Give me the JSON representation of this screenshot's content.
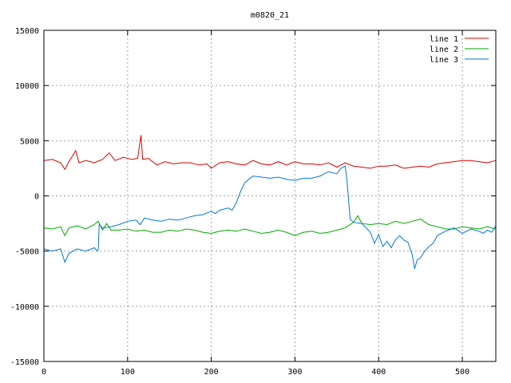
{
  "chart_data": {
    "type": "line",
    "title": "m0820_21",
    "xlim": [
      0,
      540
    ],
    "ylim": [
      -15000,
      15000
    ],
    "x_ticks": [
      0,
      100,
      200,
      300,
      400,
      500
    ],
    "y_ticks": [
      -15000,
      -10000,
      -5000,
      0,
      5000,
      10000,
      15000
    ],
    "grid": true,
    "legend_position": "top-right",
    "series": [
      {
        "name": "line 1",
        "color": "#dd0000",
        "points": [
          [
            0,
            3200
          ],
          [
            10,
            3300
          ],
          [
            20,
            3000
          ],
          [
            25,
            2400
          ],
          [
            30,
            3100
          ],
          [
            38,
            4100
          ],
          [
            42,
            3000
          ],
          [
            50,
            3200
          ],
          [
            60,
            3000
          ],
          [
            70,
            3300
          ],
          [
            78,
            3900
          ],
          [
            85,
            3200
          ],
          [
            95,
            3500
          ],
          [
            105,
            3300
          ],
          [
            112,
            3400
          ],
          [
            116,
            5500
          ],
          [
            118,
            3300
          ],
          [
            125,
            3400
          ],
          [
            135,
            2800
          ],
          [
            145,
            3100
          ],
          [
            155,
            2900
          ],
          [
            165,
            3000
          ],
          [
            175,
            3000
          ],
          [
            185,
            2800
          ],
          [
            195,
            2900
          ],
          [
            200,
            2500
          ],
          [
            210,
            3000
          ],
          [
            220,
            3100
          ],
          [
            230,
            2900
          ],
          [
            240,
            2800
          ],
          [
            250,
            3200
          ],
          [
            260,
            2900
          ],
          [
            270,
            2800
          ],
          [
            280,
            3100
          ],
          [
            290,
            2800
          ],
          [
            300,
            3100
          ],
          [
            310,
            2900
          ],
          [
            320,
            2900
          ],
          [
            330,
            2800
          ],
          [
            340,
            3000
          ],
          [
            350,
            2600
          ],
          [
            360,
            3000
          ],
          [
            370,
            2700
          ],
          [
            380,
            2600
          ],
          [
            390,
            2500
          ],
          [
            400,
            2700
          ],
          [
            410,
            2700
          ],
          [
            420,
            2800
          ],
          [
            430,
            2500
          ],
          [
            440,
            2600
          ],
          [
            450,
            2700
          ],
          [
            460,
            2600
          ],
          [
            470,
            2900
          ],
          [
            480,
            3000
          ],
          [
            490,
            3100
          ],
          [
            500,
            3200
          ],
          [
            510,
            3200
          ],
          [
            520,
            3100
          ],
          [
            530,
            3000
          ],
          [
            540,
            3200
          ]
        ]
      },
      {
        "name": "line 2",
        "color": "#00aa00",
        "points": [
          [
            0,
            -2900
          ],
          [
            10,
            -3000
          ],
          [
            20,
            -2800
          ],
          [
            25,
            -3600
          ],
          [
            30,
            -2900
          ],
          [
            40,
            -2700
          ],
          [
            50,
            -3000
          ],
          [
            60,
            -2600
          ],
          [
            65,
            -2300
          ],
          [
            70,
            -3100
          ],
          [
            75,
            -2500
          ],
          [
            80,
            -3100
          ],
          [
            90,
            -3100
          ],
          [
            100,
            -3000
          ],
          [
            110,
            -3200
          ],
          [
            120,
            -3100
          ],
          [
            130,
            -3300
          ],
          [
            140,
            -3300
          ],
          [
            150,
            -3100
          ],
          [
            160,
            -3200
          ],
          [
            170,
            -3000
          ],
          [
            180,
            -3100
          ],
          [
            190,
            -3300
          ],
          [
            200,
            -3400
          ],
          [
            210,
            -3200
          ],
          [
            220,
            -3100
          ],
          [
            230,
            -3200
          ],
          [
            240,
            -3000
          ],
          [
            250,
            -3200
          ],
          [
            260,
            -3400
          ],
          [
            270,
            -3300
          ],
          [
            280,
            -3100
          ],
          [
            290,
            -3300
          ],
          [
            300,
            -3600
          ],
          [
            310,
            -3300
          ],
          [
            320,
            -3200
          ],
          [
            330,
            -3400
          ],
          [
            340,
            -3300
          ],
          [
            350,
            -3100
          ],
          [
            360,
            -2900
          ],
          [
            370,
            -2400
          ],
          [
            375,
            -1800
          ],
          [
            380,
            -2500
          ],
          [
            390,
            -2600
          ],
          [
            400,
            -2500
          ],
          [
            410,
            -2600
          ],
          [
            420,
            -2300
          ],
          [
            430,
            -2500
          ],
          [
            440,
            -2300
          ],
          [
            450,
            -2100
          ],
          [
            460,
            -2600
          ],
          [
            470,
            -2800
          ],
          [
            480,
            -3000
          ],
          [
            490,
            -3000
          ],
          [
            500,
            -2800
          ],
          [
            510,
            -2900
          ],
          [
            520,
            -3000
          ],
          [
            530,
            -2800
          ],
          [
            540,
            -3000
          ]
        ]
      },
      {
        "name": "line 3",
        "color": "#0077dd",
        "points": [
          [
            0,
            -4800
          ],
          [
            10,
            -5000
          ],
          [
            20,
            -4800
          ],
          [
            25,
            -6000
          ],
          [
            30,
            -5200
          ],
          [
            40,
            -4800
          ],
          [
            50,
            -5000
          ],
          [
            60,
            -4700
          ],
          [
            64,
            -5000
          ],
          [
            65,
            -4800
          ],
          [
            66,
            -2600
          ],
          [
            70,
            -2900
          ],
          [
            80,
            -2800
          ],
          [
            90,
            -2600
          ],
          [
            100,
            -2300
          ],
          [
            110,
            -2200
          ],
          [
            115,
            -2600
          ],
          [
            120,
            -2000
          ],
          [
            130,
            -2200
          ],
          [
            140,
            -2300
          ],
          [
            150,
            -2100
          ],
          [
            160,
            -2200
          ],
          [
            170,
            -2000
          ],
          [
            180,
            -1800
          ],
          [
            190,
            -1700
          ],
          [
            200,
            -1400
          ],
          [
            205,
            -1600
          ],
          [
            210,
            -1300
          ],
          [
            220,
            -1100
          ],
          [
            225,
            -1300
          ],
          [
            230,
            -600
          ],
          [
            235,
            400
          ],
          [
            240,
            1200
          ],
          [
            245,
            1500
          ],
          [
            250,
            1800
          ],
          [
            260,
            1700
          ],
          [
            270,
            1600
          ],
          [
            280,
            1700
          ],
          [
            290,
            1500
          ],
          [
            300,
            1400
          ],
          [
            310,
            1600
          ],
          [
            320,
            1600
          ],
          [
            330,
            1800
          ],
          [
            340,
            2200
          ],
          [
            350,
            2000
          ],
          [
            355,
            2500
          ],
          [
            360,
            2700
          ],
          [
            362,
            1500
          ],
          [
            366,
            -2100
          ],
          [
            370,
            -2400
          ],
          [
            380,
            -2500
          ],
          [
            390,
            -3300
          ],
          [
            395,
            -4300
          ],
          [
            400,
            -3500
          ],
          [
            405,
            -4600
          ],
          [
            410,
            -4100
          ],
          [
            415,
            -4700
          ],
          [
            420,
            -4000
          ],
          [
            425,
            -3600
          ],
          [
            430,
            -4000
          ],
          [
            435,
            -4200
          ],
          [
            440,
            -5300
          ],
          [
            443,
            -6600
          ],
          [
            446,
            -5800
          ],
          [
            450,
            -5600
          ],
          [
            455,
            -5000
          ],
          [
            460,
            -4600
          ],
          [
            465,
            -4300
          ],
          [
            470,
            -3600
          ],
          [
            480,
            -3200
          ],
          [
            490,
            -2900
          ],
          [
            500,
            -3400
          ],
          [
            510,
            -3000
          ],
          [
            520,
            -3200
          ],
          [
            525,
            -3400
          ],
          [
            530,
            -3100
          ],
          [
            535,
            -3300
          ],
          [
            540,
            -2700
          ]
        ]
      }
    ]
  }
}
